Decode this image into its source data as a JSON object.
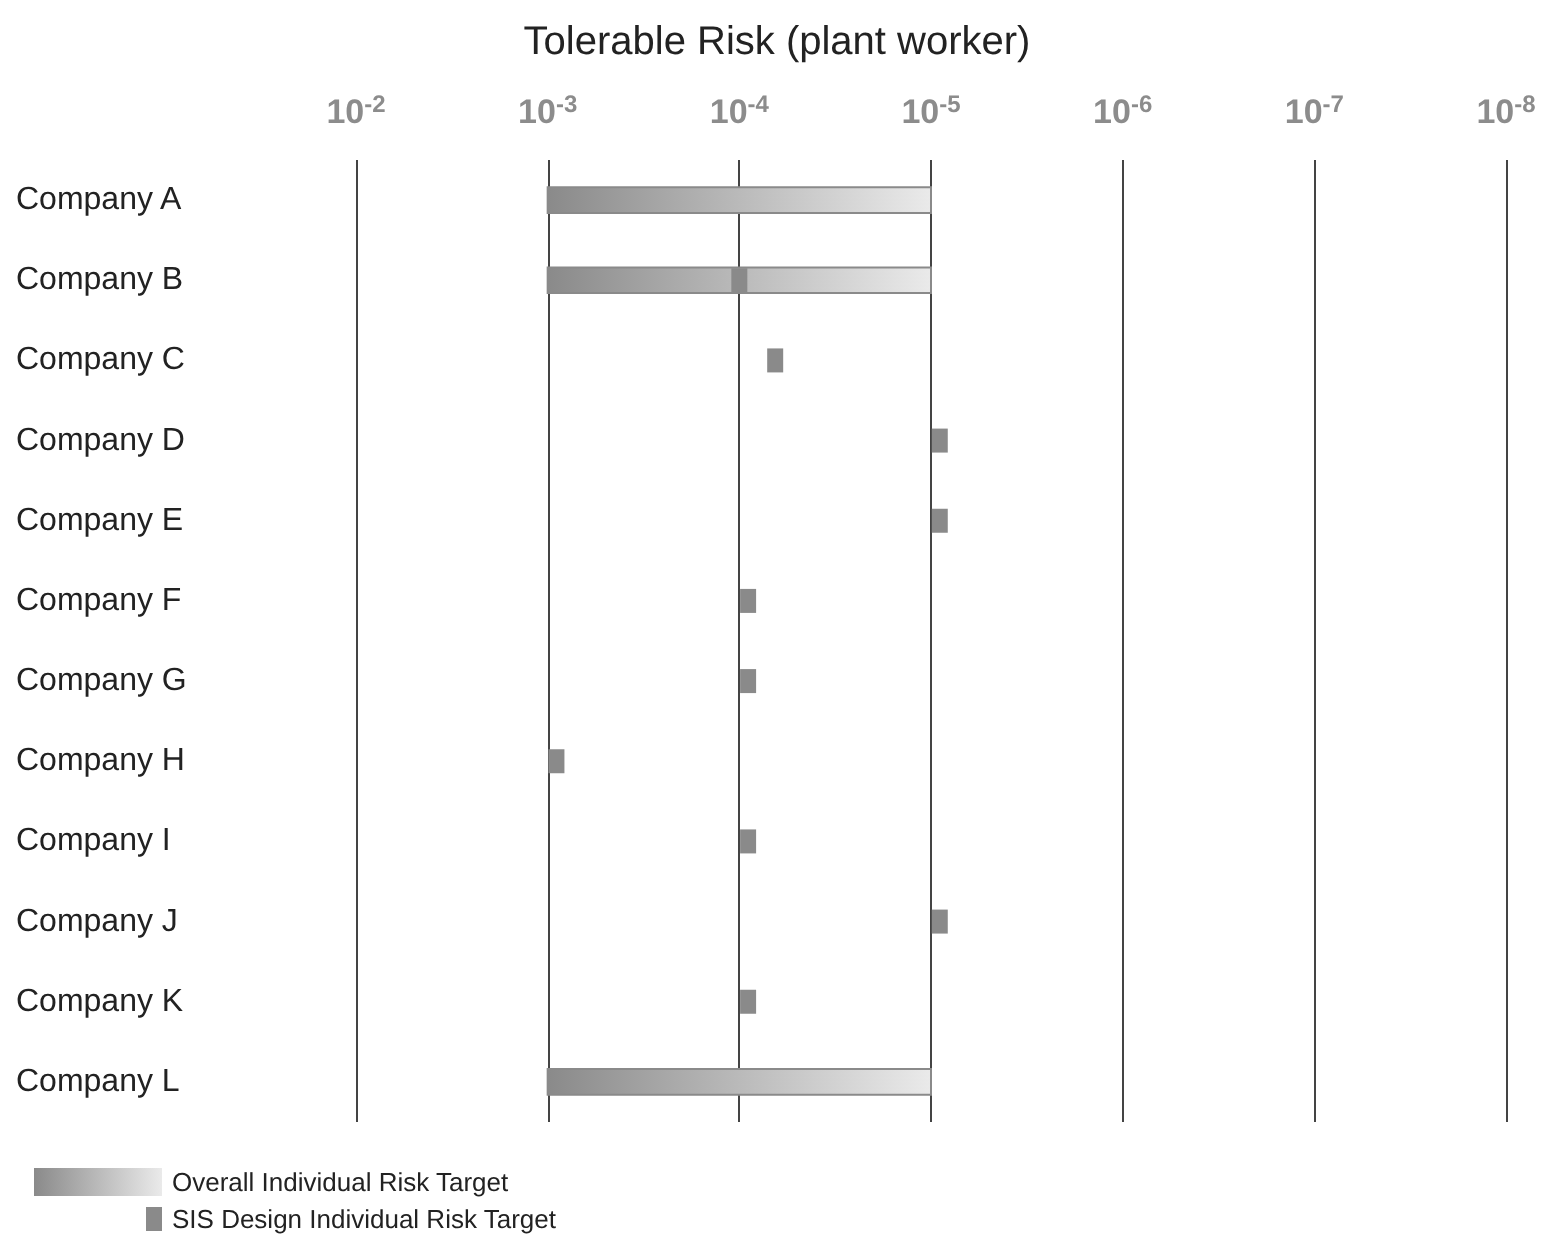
{
  "chart_data": {
    "type": "bar",
    "orientation": "horizontal",
    "title": "Tolerable Risk (plant worker)",
    "categories": [
      "Company A",
      "Company B",
      "Company C",
      "Company D",
      "Company E",
      "Company F",
      "Company G",
      "Company H",
      "Company I",
      "Company J",
      "Company K",
      "Company L"
    ],
    "log": "x",
    "xlim": [
      0.01,
      1e-08
    ],
    "xticks": [
      {
        "value": 0.01,
        "label": "10$^{-2}$"
      },
      {
        "value": 0.001,
        "label": "10$^{-3}$"
      },
      {
        "value": 0.0001,
        "label": "10$^{-4}$"
      },
      {
        "value": 1e-05,
        "label": "10$^{-5}$"
      },
      {
        "value": 1e-06,
        "label": "10$^{-6}$"
      },
      {
        "value": 1e-07,
        "label": "10$^{-7}$"
      },
      {
        "value": 1e-08,
        "label": "10$^{-8}$"
      }
    ],
    "grid": "x",
    "legend": "bottom left",
    "series": [
      {
        "name": "Overall Individual Risk Target",
        "type": "bar",
        "color": "#8a8a8a",
        "base": [
          1e-05,
          1e-05,
          null,
          null,
          null,
          null,
          null,
          null,
          null,
          null,
          null,
          1e-05
        ],
        "values": [
          0.00099,
          0.00099,
          null,
          null,
          null,
          null,
          null,
          null,
          null,
          null,
          null,
          0.00099
        ]
      },
      {
        "name": "SIS Design Individual Risk Target",
        "type": "scatter",
        "marker": "square",
        "color": "#8a8a8a",
        "values": [
          null,
          0.0001,
          6.5e-05,
          9e-06,
          9e-06,
          9e-05,
          9e-05,
          0.0009,
          9e-05,
          9e-06,
          9e-05,
          null
        ]
      }
    ]
  }
}
